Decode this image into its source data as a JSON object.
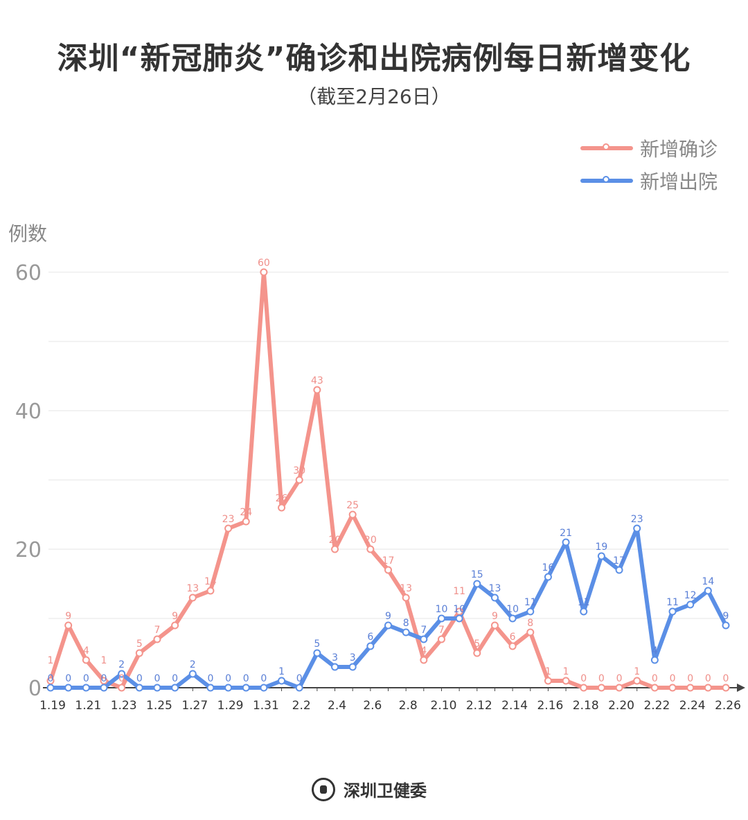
{
  "title": "深圳“新冠肺炎”确诊和出院病例每日新增变化",
  "subtitle": "（截至2月26日）",
  "footer": {
    "org": "深圳卫健委"
  },
  "chart_data": {
    "type": "line",
    "title": "深圳“新冠肺炎”确诊和出院病例每日新增变化",
    "subtitle": "（截至2月26日）",
    "ylabel": "例数",
    "xlabel": "",
    "ylim": [
      0,
      60
    ],
    "yticks": [
      0,
      20,
      40,
      60
    ],
    "grid": true,
    "legend_position": "top-right",
    "x": [
      "1.19",
      "1.20",
      "1.21",
      "1.22",
      "1.23",
      "1.24",
      "1.25",
      "1.26",
      "1.27",
      "1.28",
      "1.29",
      "1.30",
      "1.31",
      "2.1",
      "2.2",
      "2.3",
      "2.4",
      "2.5",
      "2.6",
      "2.7",
      "2.8",
      "2.9",
      "2.10",
      "2.11",
      "2.12",
      "2.13",
      "2.14",
      "2.15",
      "2.16",
      "2.17",
      "2.18",
      "2.19",
      "2.20",
      "2.21",
      "2.22",
      "2.23",
      "2.24",
      "2.25",
      "2.26"
    ],
    "xticklabels": [
      "1.19",
      "1.21",
      "1.23",
      "1.25",
      "1.27",
      "1.29",
      "1.31",
      "2.2",
      "2.4",
      "2.6",
      "2.8",
      "2.10",
      "2.12",
      "2.14",
      "2.16",
      "2.18",
      "2.20",
      "2.22",
      "2.24",
      "2.26"
    ],
    "series": [
      {
        "name": "新增确诊",
        "color": "#f4948c",
        "label_color": "#ef8f8a",
        "values": [
          1,
          9,
          4,
          1,
          0,
          5,
          7,
          9,
          13,
          14,
          23,
          24,
          60,
          26,
          30,
          43,
          20,
          25,
          20,
          17,
          13,
          4,
          7,
          11,
          5,
          9,
          6,
          8,
          1,
          1,
          0,
          0,
          0,
          1,
          0,
          0,
          0,
          0,
          0
        ]
      },
      {
        "name": "新增出院",
        "color": "#5b8fe6",
        "label_color": "#5a7fd6",
        "values": [
          0,
          0,
          0,
          0,
          2,
          0,
          0,
          0,
          2,
          0,
          0,
          0,
          0,
          1,
          0,
          5,
          3,
          3,
          6,
          9,
          8,
          7,
          10,
          10,
          15,
          13,
          10,
          11,
          16,
          21,
          11,
          19,
          17,
          23,
          4,
          11,
          12,
          14,
          9
        ]
      }
    ]
  }
}
